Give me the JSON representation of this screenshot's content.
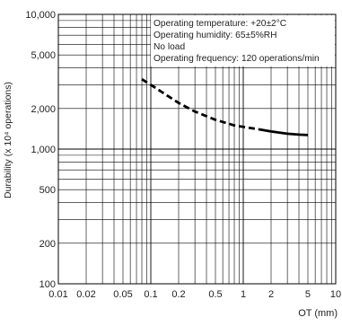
{
  "chart_data": {
    "type": "line",
    "x_scale": "log",
    "y_scale": "log",
    "xlim": [
      0.01,
      10
    ],
    "ylim": [
      100,
      10000
    ],
    "xlabel": "OT (mm)",
    "ylabel": "Durability (x 10⁴ operations)",
    "x_ticks": [
      {
        "value": 0.01,
        "label": "0.01"
      },
      {
        "value": 0.02,
        "label": "0.02"
      },
      {
        "value": 0.05,
        "label": "0.05"
      },
      {
        "value": 0.1,
        "label": "0.1"
      },
      {
        "value": 0.2,
        "label": "0.2"
      },
      {
        "value": 0.5,
        "label": "0.5"
      },
      {
        "value": 1,
        "label": "1"
      },
      {
        "value": 2,
        "label": "2"
      },
      {
        "value": 5,
        "label": "5"
      },
      {
        "value": 10,
        "label": "10"
      }
    ],
    "y_ticks": [
      {
        "value": 100,
        "label": "100"
      },
      {
        "value": 200,
        "label": "200"
      },
      {
        "value": 500,
        "label": "500"
      },
      {
        "value": 1000,
        "label": "1,000"
      },
      {
        "value": 2000,
        "label": "2,000"
      },
      {
        "value": 5000,
        "label": "5,000"
      },
      {
        "value": 10000,
        "label": "10,000"
      }
    ],
    "grid": true,
    "annotations": [
      "Operating temperature: +20±2°C",
      "Operating humidity: 65±5%RH",
      "No load",
      "Operating frequency: 120 operations/min"
    ],
    "series": [
      {
        "style": "dashed",
        "color": "#000000",
        "points": [
          [
            0.08,
            3300
          ],
          [
            0.1,
            3000
          ],
          [
            0.15,
            2500
          ],
          [
            0.2,
            2200
          ],
          [
            0.3,
            1900
          ],
          [
            0.5,
            1650
          ],
          [
            0.8,
            1500
          ],
          [
            1.0,
            1460
          ],
          [
            1.5,
            1400
          ]
        ]
      },
      {
        "style": "solid",
        "color": "#000000",
        "points": [
          [
            1.5,
            1400
          ],
          [
            2.0,
            1350
          ],
          [
            3.0,
            1300
          ],
          [
            4.0,
            1280
          ],
          [
            5.0,
            1270
          ]
        ]
      }
    ]
  }
}
